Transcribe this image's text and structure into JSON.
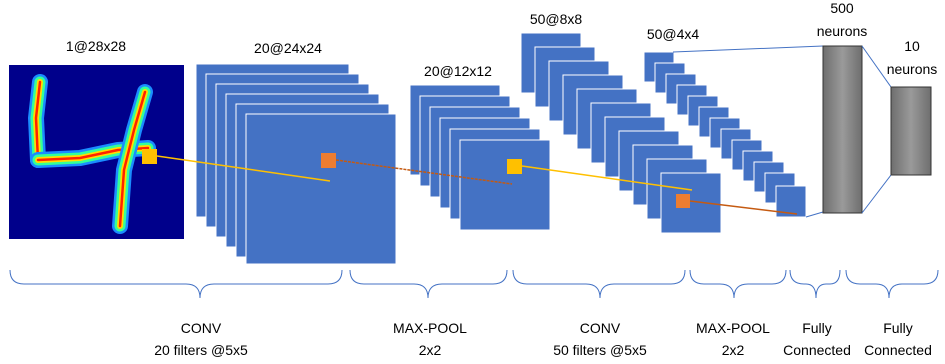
{
  "diagram": {
    "input": {
      "label": "1@28x28"
    },
    "layers": [
      {
        "id": "conv1",
        "label": "20@24x24"
      },
      {
        "id": "pool1",
        "label": "20@12x12"
      },
      {
        "id": "conv2",
        "label": "50@8x8"
      },
      {
        "id": "pool2",
        "label": "50@4x4"
      },
      {
        "id": "fc1",
        "label_line1": "500",
        "label_line2": "neurons"
      },
      {
        "id": "fc2",
        "label_line1": "10",
        "label_line2": "neurons"
      }
    ],
    "operations": [
      {
        "id": "op-conv1",
        "line1": "CONV",
        "line2": "20 filters @5x5"
      },
      {
        "id": "op-pool1",
        "line1": "MAX-POOL",
        "line2": "2x2"
      },
      {
        "id": "op-conv2",
        "line1": "CONV",
        "line2": "50 filters @5x5"
      },
      {
        "id": "op-pool2",
        "line1": "MAX-POOL",
        "line2": "2x2"
      },
      {
        "id": "op-fc1",
        "line1": "Fully",
        "line2": "Connected"
      },
      {
        "id": "op-fc2",
        "line1": "Fully",
        "line2": "Connected"
      }
    ],
    "colors": {
      "feature_map_fill": "#4472C4",
      "feature_map_stroke": "#ffffff",
      "kernel_orange": "#ED7D31",
      "kernel_yellow": "#FFC000",
      "line_yellow": "#FFC000",
      "line_brown": "#C55A11",
      "brace": "#4472C4",
      "neuron_fill": "#808080",
      "input_background": "#00008B"
    }
  }
}
